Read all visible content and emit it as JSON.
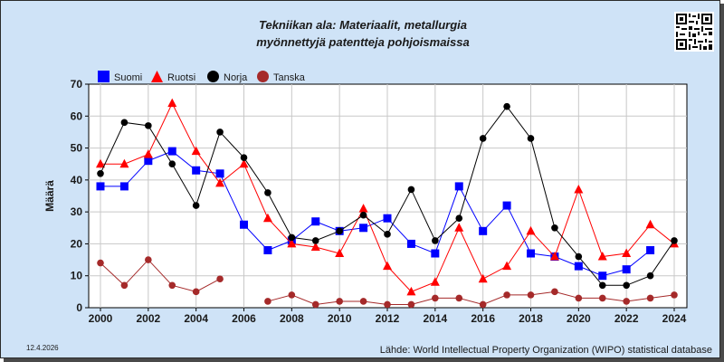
{
  "chart_data": {
    "type": "line",
    "title": "Tekniikan ala: Materiaalit, metallurgia",
    "subtitle": "myönnettyjä patentteja pohjoismaissa",
    "ylabel": "Määrä",
    "xlim": [
      2000,
      2024
    ],
    "ylim": [
      0,
      70
    ],
    "y_ticks": [
      0,
      10,
      20,
      30,
      40,
      50,
      60,
      70
    ],
    "x_ticks": [
      2000,
      2002,
      2004,
      2006,
      2008,
      2010,
      2012,
      2014,
      2016,
      2018,
      2020,
      2022,
      2024
    ],
    "grid": true,
    "legend_position": "top-left",
    "x": [
      2000,
      2001,
      2002,
      2003,
      2004,
      2005,
      2006,
      2007,
      2008,
      2009,
      2010,
      2011,
      2012,
      2013,
      2014,
      2015,
      2016,
      2017,
      2018,
      2019,
      2020,
      2021,
      2022,
      2023,
      2024
    ],
    "series": [
      {
        "name": "Suomi",
        "color": "#0000ff",
        "marker": "square",
        "values": [
          38,
          38,
          46,
          49,
          43,
          42,
          26,
          18,
          21,
          27,
          24,
          25,
          28,
          20,
          17,
          38,
          24,
          32,
          17,
          16,
          13,
          10,
          12,
          18,
          null
        ]
      },
      {
        "name": "Ruotsi",
        "color": "#ff0000",
        "marker": "triangle",
        "values": [
          45,
          45,
          48,
          64,
          49,
          39,
          45,
          28,
          20,
          19,
          17,
          31,
          13,
          5,
          8,
          25,
          9,
          13,
          24,
          16,
          37,
          16,
          17,
          26,
          20
        ]
      },
      {
        "name": "Norja",
        "color": "#000000",
        "marker": "circle",
        "values": [
          42,
          58,
          57,
          45,
          32,
          55,
          47,
          36,
          22,
          21,
          24,
          29,
          23,
          37,
          21,
          28,
          53,
          63,
          53,
          25,
          16,
          7,
          7,
          10,
          21
        ]
      },
      {
        "name": "Tanska",
        "color": "#a52a2a",
        "marker": "circle",
        "values": [
          14,
          7,
          15,
          7,
          5,
          9,
          null,
          2,
          4,
          1,
          2,
          2,
          1,
          1,
          3,
          3,
          1,
          4,
          4,
          5,
          3,
          3,
          2,
          3,
          4
        ]
      }
    ]
  },
  "footer": {
    "date": "12.4.2026",
    "source": "Lähde: World Intellectual Property Organization (WIPO) statistical database"
  },
  "qr_icon": "qr-code-icon"
}
